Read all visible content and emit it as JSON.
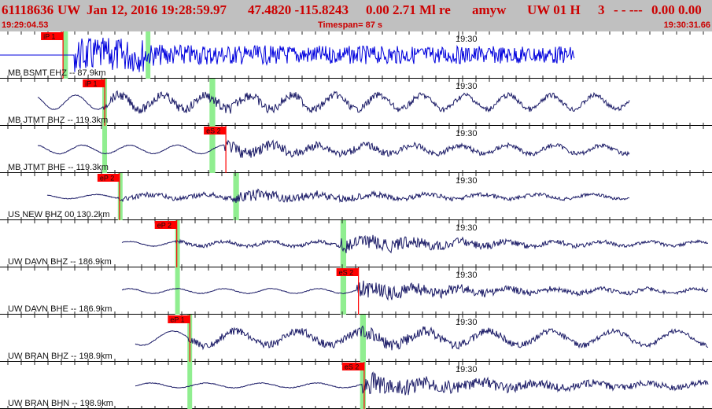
{
  "header": {
    "event_id": "61118636",
    "network": "UW",
    "datetime": "Jan 12, 2016 19:28:59.97",
    "latlon": "47.4820 -115.8243",
    "depth_mag": "0.00 2.71 Ml re",
    "analyst": "amyw",
    "source_code": "UW 01 H",
    "version": "3",
    "flags": "- - ---",
    "errors": "0.00 0.00",
    "start_time": "19:29:04.53",
    "timespan": "Timespan=  87 s",
    "end_time": "19:30:31.66"
  },
  "colors": {
    "header_bg": "#c0c0c0",
    "header_text": "#cc0000",
    "trace_first": "#0000dd",
    "trace": "#1a1a66",
    "pick_flag": "#ff0000",
    "window_band": "#90ee90",
    "tick": "#222222"
  },
  "chart_data": {
    "type": "line",
    "x_axis": {
      "start": "19:29:04.53",
      "end": "19:30:31.66",
      "span_s": 87,
      "tick_label": "19:30"
    },
    "panels": [
      {
        "label": "MB BSMT EHZ -- 87.9km",
        "color": "#0000dd",
        "picks": [
          {
            "label": "iP 1",
            "time_s": 7.7
          }
        ],
        "windows": [
          {
            "t0": 7.7,
            "t1": 8.3
          },
          {
            "t0": 17.8,
            "t1": 18.3
          }
        ]
      },
      {
        "label": "MB JTMT BHZ -- 119.3km",
        "picks": [
          {
            "label": "iP 1",
            "time_s": 12.8
          }
        ],
        "windows": [
          {
            "t0": 12.5,
            "t1": 13.0
          },
          {
            "t0": 25.6,
            "t1": 26.3
          }
        ]
      },
      {
        "label": "MB JTMT BHE -- 119.3km",
        "picks": [
          {
            "label": "eS 2",
            "time_s": 27.6
          }
        ],
        "windows": [
          {
            "t0": 12.5,
            "t1": 13.0
          },
          {
            "t0": 25.6,
            "t1": 26.3
          }
        ]
      },
      {
        "label": "US NEW BHZ 00 130.2km",
        "picks": [
          {
            "label": "eP 2",
            "time_s": 14.6
          }
        ],
        "windows": [
          {
            "t0": 14.4,
            "t1": 14.9
          },
          {
            "t0": 28.5,
            "t1": 29.2
          }
        ]
      },
      {
        "label": "UW DAVN BHZ -- 186.9km",
        "picks": [
          {
            "label": "eP 2",
            "time_s": 21.6
          }
        ],
        "windows": [
          {
            "t0": 21.4,
            "t1": 21.9
          },
          {
            "t0": 41.6,
            "t1": 42.3
          }
        ]
      },
      {
        "label": "UW DAVN BHE -- 186.9km",
        "picks": [
          {
            "label": "eS 2",
            "time_s": 43.8
          }
        ],
        "windows": [
          {
            "t0": 21.4,
            "t1": 21.9
          },
          {
            "t0": 41.6,
            "t1": 42.3
          }
        ]
      },
      {
        "label": "UW BRAN BHZ -- 198.9km",
        "picks": [
          {
            "label": "eP 1",
            "time_s": 23.2
          }
        ],
        "windows": [
          {
            "t0": 22.9,
            "t1": 23.4
          },
          {
            "t0": 44.0,
            "t1": 44.7
          }
        ]
      },
      {
        "label": "UW BRAN BHN -- 198.9km",
        "picks": [
          {
            "label": "eS 2",
            "time_s": 44.5
          }
        ],
        "windows": [
          {
            "t0": 22.9,
            "t1": 23.4
          },
          {
            "t0": 44.0,
            "t1": 44.7
          }
        ]
      }
    ]
  }
}
